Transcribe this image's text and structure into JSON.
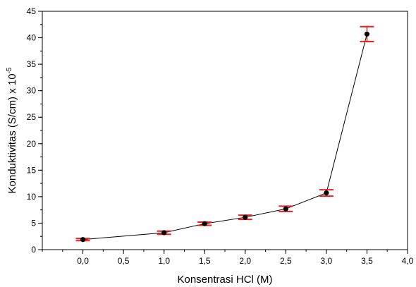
{
  "chart_data": {
    "type": "scatter",
    "title": "",
    "xlabel": "Konsentrasi HCl (M)",
    "ylabel": "Konduktivitas (S/cm) x 10",
    "ylabel_exponent": "-5",
    "xlim": [
      -0.5,
      4.0
    ],
    "ylim": [
      0,
      45
    ],
    "x_ticks": [
      {
        "value": 0.0,
        "label": "0,0"
      },
      {
        "value": 0.5,
        "label": "0,5"
      },
      {
        "value": 1.0,
        "label": "1,0"
      },
      {
        "value": 1.5,
        "label": "1,5"
      },
      {
        "value": 2.0,
        "label": "2,0"
      },
      {
        "value": 2.5,
        "label": "2,5"
      },
      {
        "value": 3.0,
        "label": "3,0"
      },
      {
        "value": 3.5,
        "label": "3,5"
      },
      {
        "value": 4.0,
        "label": "4,0"
      }
    ],
    "y_ticks": [
      {
        "value": 0,
        "label": "0"
      },
      {
        "value": 5,
        "label": "5"
      },
      {
        "value": 10,
        "label": "10"
      },
      {
        "value": 15,
        "label": "15"
      },
      {
        "value": 20,
        "label": "20"
      },
      {
        "value": 25,
        "label": "25"
      },
      {
        "value": 30,
        "label": "30"
      },
      {
        "value": 35,
        "label": "35"
      },
      {
        "value": 40,
        "label": "40"
      },
      {
        "value": 45,
        "label": "45"
      }
    ],
    "grid": false,
    "connect_points": true,
    "series": [
      {
        "x": [
          0.0,
          1.0,
          1.5,
          2.0,
          2.5,
          3.0,
          3.5
        ],
        "y": [
          1.9,
          3.2,
          4.9,
          6.1,
          7.7,
          10.7,
          40.7
        ],
        "error": [
          0.2,
          0.3,
          0.3,
          0.4,
          0.5,
          0.6,
          1.4
        ]
      }
    ],
    "colors": {
      "marker": "#000000",
      "line": "#000000",
      "error_bar": "#e8201e"
    }
  }
}
